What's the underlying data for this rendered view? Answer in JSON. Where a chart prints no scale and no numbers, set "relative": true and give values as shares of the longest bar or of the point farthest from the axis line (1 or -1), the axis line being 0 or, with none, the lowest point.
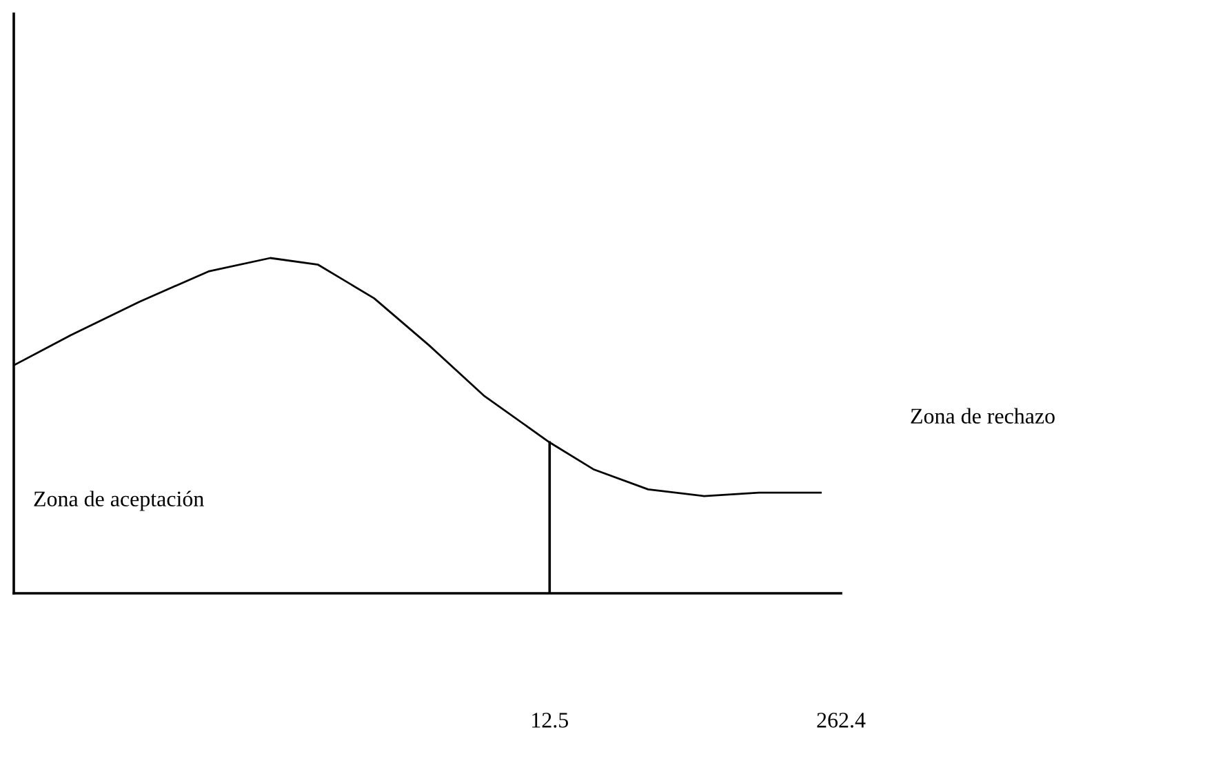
{
  "chart_data": {
    "type": "line",
    "relative": true,
    "color": "#000000",
    "x": [
      -447,
      -398,
      -339,
      -280,
      -227,
      -186,
      -138,
      -91,
      -44,
      12.5,
      50,
      97,
      145,
      192,
      245
    ],
    "values": [
      0.68,
      0.77,
      0.87,
      0.96,
      1,
      0.98,
      0.88,
      0.74,
      0.59,
      0.45,
      0.37,
      0.31,
      0.29,
      0.3,
      0.3
    ],
    "xlim": [
      -447,
      262.4
    ],
    "xticks": [
      12.5,
      262.4
    ],
    "ref_lines": [
      {
        "axis": "x",
        "value": 12.5,
        "color": "#000000"
      }
    ],
    "annotations": [
      "Zona de aceptación",
      "Zona de rechazo"
    ],
    "grid": false,
    "legend": false,
    "marker": "none",
    "line_style": "solid"
  }
}
